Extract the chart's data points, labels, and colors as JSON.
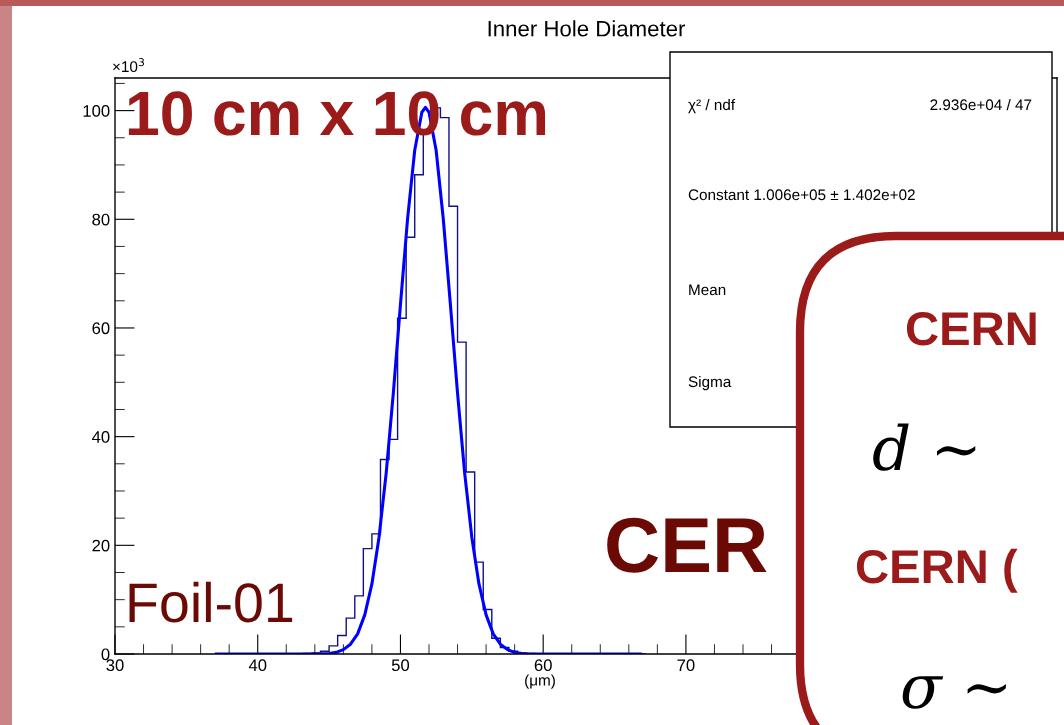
{
  "chart_data": {
    "type": "histogram",
    "title": "Inner Hole Diameter",
    "xlabel": "(μm)",
    "bins": [
      37.2,
      37.8,
      38.4,
      39.0,
      39.6,
      40.2,
      40.8,
      41.4,
      42.0,
      42.6,
      43.2,
      43.8,
      44.4,
      45.0,
      45.6,
      46.2,
      46.8,
      47.4,
      48.0,
      48.6,
      49.2,
      49.8,
      50.4,
      51.0,
      51.6,
      52.2,
      52.8,
      53.4,
      54.0,
      54.6,
      55.2,
      55.8,
      56.4,
      57.0,
      57.6,
      58.2,
      58.8,
      59.4,
      60.0,
      60.6,
      61.2,
      61.8,
      62.4,
      63.0,
      63.6,
      64.2,
      64.8,
      65.4,
      66.0,
      66.6,
      67.2
    ],
    "values": [
      0,
      0,
      0,
      0,
      0,
      0,
      0,
      0,
      0,
      0,
      0.1,
      0.2,
      0.5,
      1.5,
      3.4,
      6.6,
      10.7,
      19.4,
      22.1,
      35.8,
      39.5,
      61.8,
      76.7,
      88.2,
      96.3,
      100.5,
      98.7,
      82.4,
      57.4,
      33.5,
      16.9,
      8.2,
      2.9,
      1.2,
      0.5,
      0.2,
      0.1,
      0,
      0,
      0,
      0,
      0,
      0,
      0,
      0,
      0,
      0,
      0,
      0,
      0
    ],
    "color": "#10108a",
    "series": [
      {
        "type": "line",
        "color": "#0000ff",
        "line_style": "solid",
        "x": [
          37.1,
          43,
          44,
          45,
          45.5,
          46,
          46.5,
          47,
          47.5,
          48,
          48.5,
          49,
          49.5,
          50,
          50.5,
          51,
          51.5,
          51.75,
          52,
          52.5,
          53,
          53.5,
          54,
          54.5,
          55,
          55.5,
          56,
          56.5,
          57,
          57.5,
          58,
          58.5,
          59,
          60,
          66.8
        ],
        "values": [
          0,
          0,
          0,
          0.1,
          0.3,
          0.8,
          1.8,
          3.7,
          7.2,
          12.9,
          21.5,
          33.3,
          48.0,
          64.3,
          80.1,
          92.7,
          99.7,
          100.6,
          99.7,
          92.7,
          80.1,
          64.3,
          48.0,
          33.3,
          21.5,
          12.9,
          7.2,
          3.7,
          1.8,
          0.8,
          0.3,
          0.1,
          0,
          0,
          0
        ]
      }
    ],
    "xlim": [
      30,
      96
    ],
    "xticks": [
      30,
      40,
      50,
      60,
      70
    ],
    "ylim": [
      0,
      106
    ],
    "yticks": [
      0,
      20,
      40,
      60,
      80,
      100
    ],
    "grid": false,
    "annotations": [
      "×10$^{3}$",
      "10 cm x 10 cm",
      "Foil-01",
      "CER",
      "χ² / ndf",
      "2.936e+04 / 47",
      "Constant 1.006e+05 ± 1.402e+02",
      "Mean",
      "Sigma",
      "CERN",
      "d ∼",
      "CERN (",
      "σ ∼"
    ]
  }
}
